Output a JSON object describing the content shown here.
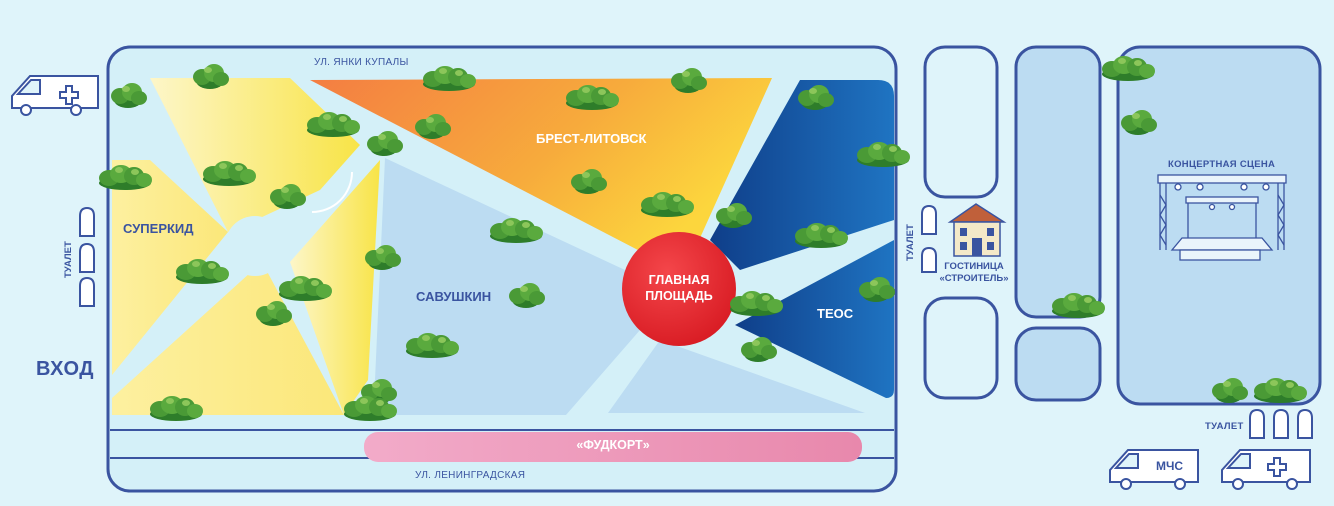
{
  "streets": {
    "north": "УЛ. ЯНКИ КУПАЛЫ",
    "south": "УЛ. ЛЕНИНГРАДСКАЯ"
  },
  "zones": {
    "superkid": "СУПЕРКИД",
    "brest_litovsk": "БРЕСТ-ЛИТОВСК",
    "savushkin": "САВУШКИН",
    "teos": "ТЕОС",
    "main_square": "ГЛАВНАЯ\nПЛОЩАДЬ",
    "foodcourt": "«ФУДКОРТ»"
  },
  "facilities": {
    "entrance": "ВХОД",
    "toilet_left": "ТУАЛЕТ",
    "toilet_middle": "ТУАЛЕТ",
    "toilet_right": "ТУАЛЕТ",
    "hotel": "ГОСТИНИЦА «СТРОИТЕЛЬ»",
    "concert_stage": "КОНЦЕРТНАЯ СЦЕНА",
    "emergency": "МЧС"
  },
  "colors": {
    "outline": "#3a54a0",
    "path": "#d4f0f8",
    "zone_light_blue": "#bcdcf2",
    "orange_start": "#f47d42",
    "orange_end": "#fcd63d",
    "yellow_start": "#fdf5c2",
    "yellow_end": "#f8e447",
    "teos_dark": "#0e3f8a",
    "teos_light": "#1f72c0",
    "main_square": "#e52228",
    "foodcourt": "#eb8fb3",
    "tree": "#4a9a36"
  },
  "icons": [
    "ambulance-icon",
    "toilet-icon",
    "tree-icon",
    "hotel-icon",
    "stage-icon",
    "mchs-vehicle-icon"
  ]
}
